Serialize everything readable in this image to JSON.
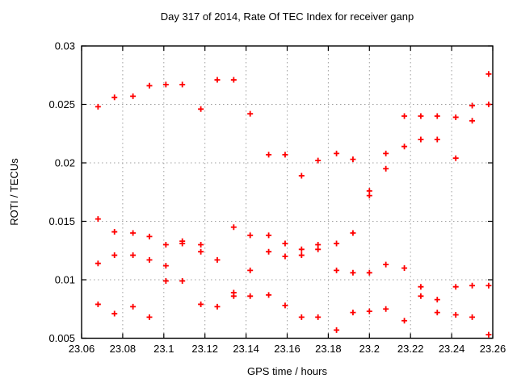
{
  "page": {
    "background": "#ffffff"
  },
  "chart_data": {
    "type": "scatter",
    "title": "Day 317 of 2014, Rate Of TEC Index for receiver ganp",
    "xlabel": "GPS time / hours",
    "ylabel": "ROTI / TECUs",
    "xlim": [
      23.06,
      23.26
    ],
    "ylim": [
      0.005,
      0.03
    ],
    "grid": true,
    "legend": "none",
    "grid_color": "#a0a0a0",
    "axis_color": "#000000",
    "marker": {
      "shape": "plus",
      "color": "#ff0000",
      "size": 7
    },
    "x_ticks": [
      {
        "value": 23.06,
        "label": "23.06"
      },
      {
        "value": 23.08,
        "label": "23.08"
      },
      {
        "value": 23.1,
        "label": "23.1"
      },
      {
        "value": 23.12,
        "label": "23.12"
      },
      {
        "value": 23.14,
        "label": "23.14"
      },
      {
        "value": 23.16,
        "label": "23.16"
      },
      {
        "value": 23.18,
        "label": "23.18"
      },
      {
        "value": 23.2,
        "label": "23.2"
      },
      {
        "value": 23.22,
        "label": "23.22"
      },
      {
        "value": 23.24,
        "label": "23.24"
      },
      {
        "value": 23.26,
        "label": "23.26"
      }
    ],
    "y_ticks": [
      {
        "value": 0.005,
        "label": "0.005"
      },
      {
        "value": 0.01,
        "label": "0.01"
      },
      {
        "value": 0.015,
        "label": "0.015"
      },
      {
        "value": 0.02,
        "label": "0.02"
      },
      {
        "value": 0.025,
        "label": "0.025"
      },
      {
        "value": 0.03,
        "label": "0.03"
      }
    ],
    "points": [
      [
        23.068,
        0.0248
      ],
      [
        23.068,
        0.0152
      ],
      [
        23.068,
        0.0114
      ],
      [
        23.068,
        0.0079
      ],
      [
        23.076,
        0.0256
      ],
      [
        23.076,
        0.0141
      ],
      [
        23.076,
        0.0121
      ],
      [
        23.076,
        0.0071
      ],
      [
        23.085,
        0.0257
      ],
      [
        23.085,
        0.014
      ],
      [
        23.085,
        0.0121
      ],
      [
        23.085,
        0.0077
      ],
      [
        23.093,
        0.0266
      ],
      [
        23.093,
        0.0137
      ],
      [
        23.093,
        0.0117
      ],
      [
        23.093,
        0.0068
      ],
      [
        23.101,
        0.0267
      ],
      [
        23.101,
        0.013
      ],
      [
        23.101,
        0.0112
      ],
      [
        23.101,
        0.0099
      ],
      [
        23.109,
        0.0267
      ],
      [
        23.109,
        0.0133
      ],
      [
        23.109,
        0.0131
      ],
      [
        23.109,
        0.0099
      ],
      [
        23.118,
        0.0246
      ],
      [
        23.118,
        0.013
      ],
      [
        23.118,
        0.0124
      ],
      [
        23.118,
        0.0079
      ],
      [
        23.126,
        0.0271
      ],
      [
        23.126,
        0.0117
      ],
      [
        23.126,
        0.0077
      ],
      [
        23.134,
        0.0271
      ],
      [
        23.134,
        0.0145
      ],
      [
        23.134,
        0.0089
      ],
      [
        23.134,
        0.0086
      ],
      [
        23.142,
        0.0242
      ],
      [
        23.142,
        0.0138
      ],
      [
        23.142,
        0.0108
      ],
      [
        23.142,
        0.0086
      ],
      [
        23.151,
        0.0207
      ],
      [
        23.151,
        0.0138
      ],
      [
        23.151,
        0.0124
      ],
      [
        23.151,
        0.0087
      ],
      [
        23.159,
        0.0207
      ],
      [
        23.159,
        0.0131
      ],
      [
        23.159,
        0.012
      ],
      [
        23.159,
        0.0078
      ],
      [
        23.167,
        0.0189
      ],
      [
        23.167,
        0.0126
      ],
      [
        23.167,
        0.0121
      ],
      [
        23.167,
        0.0068
      ],
      [
        23.175,
        0.0202
      ],
      [
        23.175,
        0.013
      ],
      [
        23.175,
        0.0126
      ],
      [
        23.175,
        0.0068
      ],
      [
        23.184,
        0.0208
      ],
      [
        23.184,
        0.0131
      ],
      [
        23.184,
        0.0108
      ],
      [
        23.184,
        0.0057
      ],
      [
        23.192,
        0.0203
      ],
      [
        23.192,
        0.014
      ],
      [
        23.192,
        0.0106
      ],
      [
        23.192,
        0.0072
      ],
      [
        23.2,
        0.0176
      ],
      [
        23.2,
        0.0172
      ],
      [
        23.2,
        0.0106
      ],
      [
        23.2,
        0.0073
      ],
      [
        23.208,
        0.0208
      ],
      [
        23.208,
        0.0195
      ],
      [
        23.208,
        0.0113
      ],
      [
        23.208,
        0.0075
      ],
      [
        23.217,
        0.024
      ],
      [
        23.217,
        0.0214
      ],
      [
        23.217,
        0.011
      ],
      [
        23.217,
        0.0065
      ],
      [
        23.225,
        0.024
      ],
      [
        23.225,
        0.022
      ],
      [
        23.225,
        0.0094
      ],
      [
        23.225,
        0.0086
      ],
      [
        23.233,
        0.024
      ],
      [
        23.233,
        0.022
      ],
      [
        23.233,
        0.0083
      ],
      [
        23.233,
        0.0072
      ],
      [
        23.242,
        0.0239
      ],
      [
        23.242,
        0.0204
      ],
      [
        23.242,
        0.0094
      ],
      [
        23.242,
        0.007
      ],
      [
        23.25,
        0.0249
      ],
      [
        23.25,
        0.0236
      ],
      [
        23.25,
        0.0095
      ],
      [
        23.25,
        0.0068
      ],
      [
        23.258,
        0.0276
      ],
      [
        23.258,
        0.025
      ],
      [
        23.258,
        0.0095
      ],
      [
        23.258,
        0.0053
      ]
    ]
  }
}
